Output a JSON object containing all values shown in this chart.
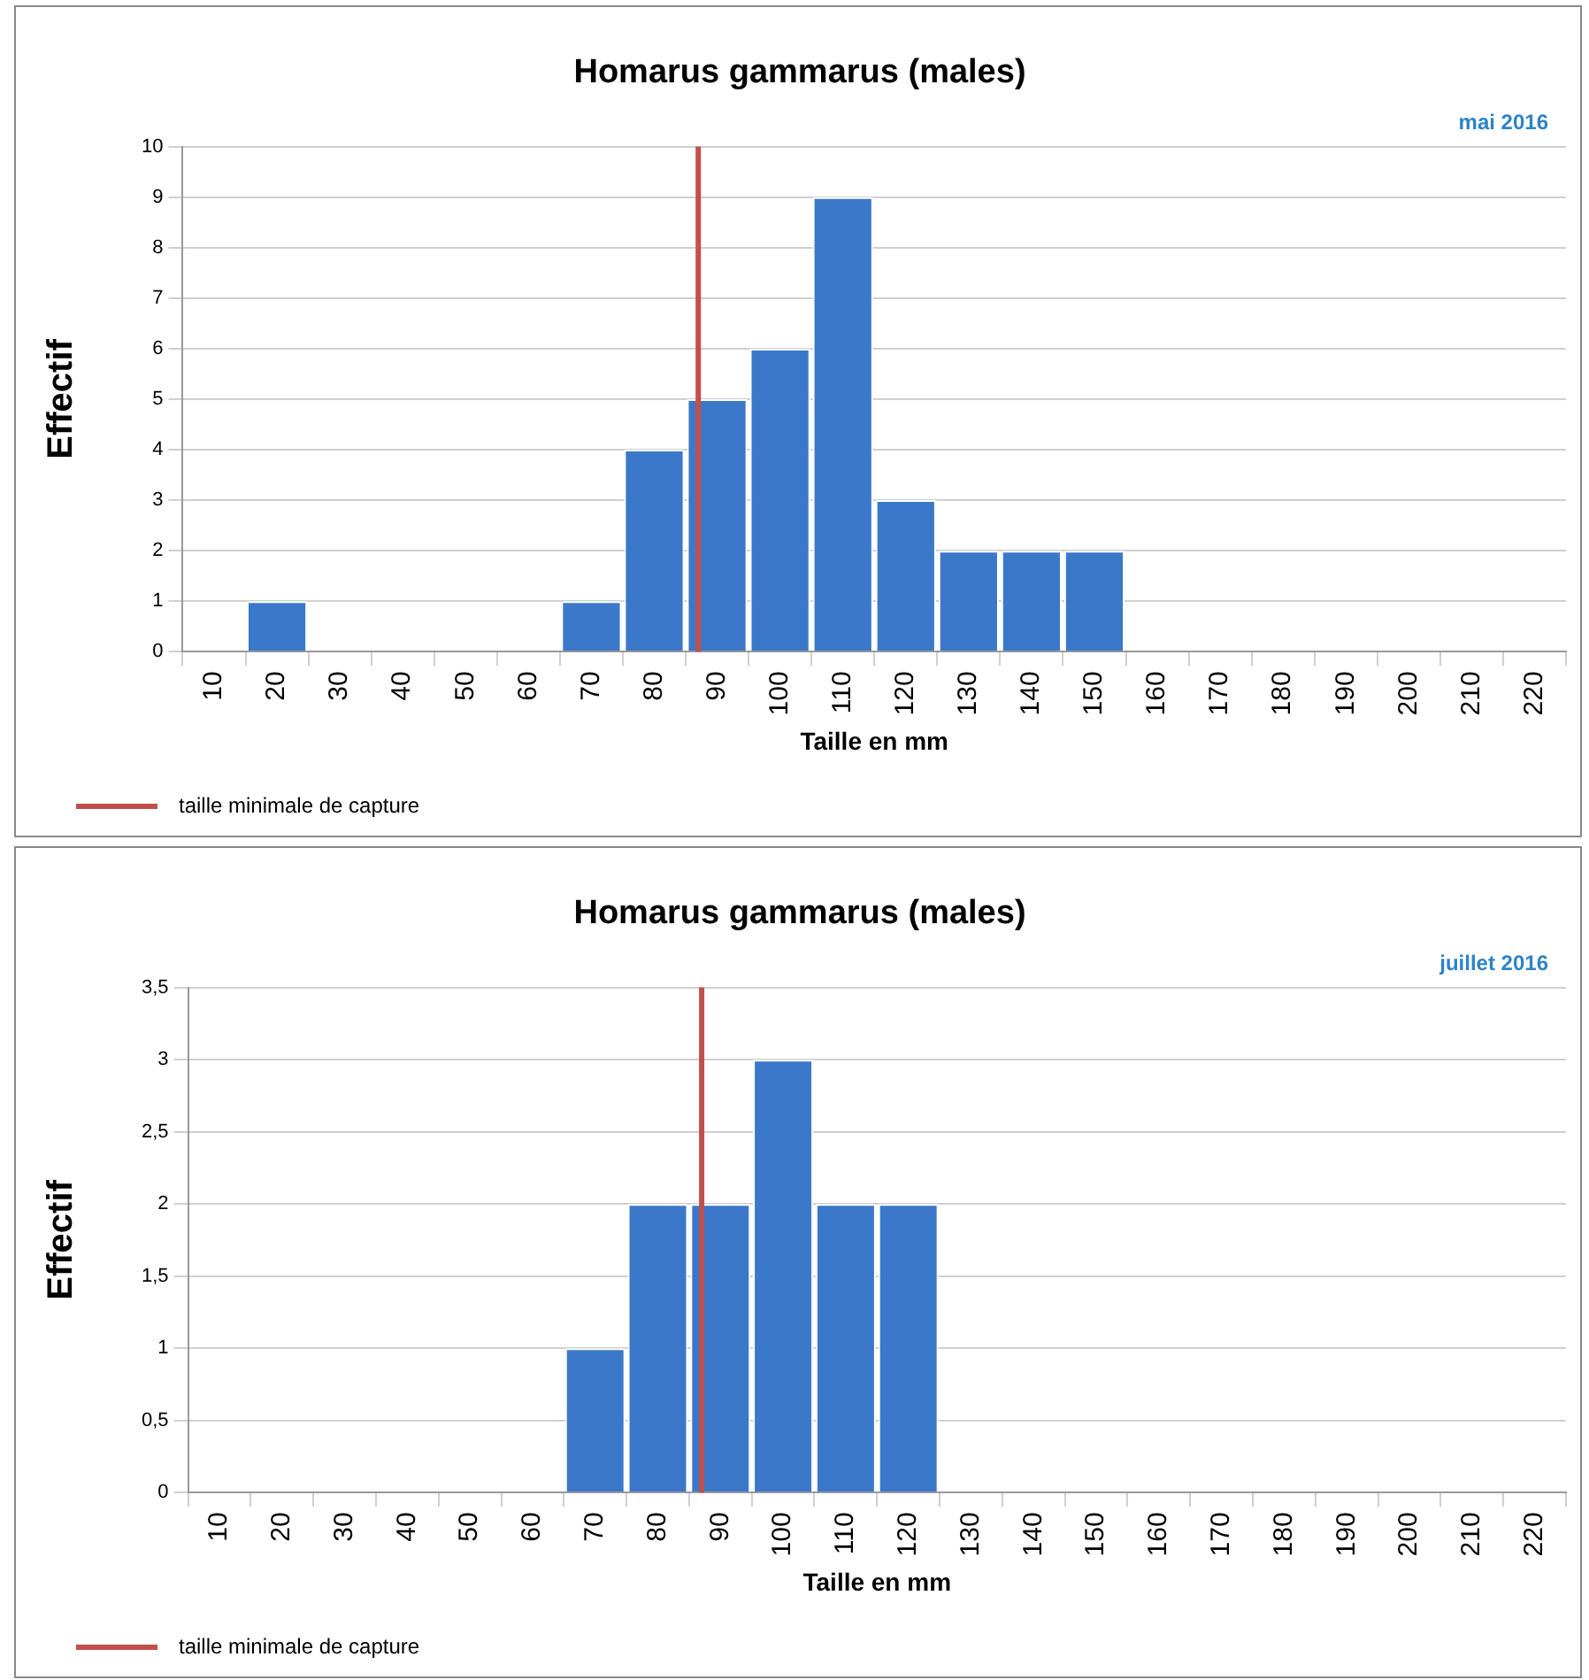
{
  "chart_data": [
    {
      "type": "histogram",
      "title": "Homarus gammarus (males)",
      "xlabel": "Taille en mm",
      "ylabel": "Effectif",
      "annotations": [
        "mai 2016"
      ],
      "bins": [
        5,
        15,
        25,
        35,
        45,
        55,
        65,
        75,
        85,
        95,
        105,
        115,
        125,
        135,
        145,
        155,
        165,
        175,
        185,
        195,
        205,
        215,
        225
      ],
      "values": [
        0,
        1,
        0,
        0,
        0,
        0,
        1,
        4,
        5,
        6,
        9,
        3,
        2,
        2,
        2,
        0,
        0,
        0,
        0,
        0,
        0,
        0
      ],
      "color": "#3b78c9",
      "xlim": [
        5,
        225
      ],
      "xticks": [
        10,
        20,
        30,
        40,
        50,
        60,
        70,
        80,
        90,
        100,
        110,
        120,
        130,
        140,
        150,
        160,
        170,
        180,
        190,
        200,
        210,
        220
      ],
      "ylim": [
        0,
        10
      ],
      "yticks": [
        0,
        1,
        2,
        3,
        4,
        5,
        6,
        7,
        8,
        9,
        10
      ],
      "grid": "y",
      "legend": "bottom left",
      "ref_lines": [
        {
          "axis": "x",
          "value": 87,
          "label": "taille minimale  de capture",
          "color": "#c0504d"
        }
      ]
    },
    {
      "type": "histogram",
      "title": "Homarus gammarus (males)",
      "xlabel": "Taille en mm",
      "ylabel": "Effectif",
      "annotations": [
        "juillet 2016"
      ],
      "bins": [
        5,
        15,
        25,
        35,
        45,
        55,
        65,
        75,
        85,
        95,
        105,
        115,
        125,
        135,
        145,
        155,
        165,
        175,
        185,
        195,
        205,
        215,
        225
      ],
      "values": [
        0,
        0,
        0,
        0,
        0,
        0,
        1,
        2,
        2,
        3,
        2,
        2,
        0,
        0,
        0,
        0,
        0,
        0,
        0,
        0,
        0,
        0
      ],
      "color": "#3b78c9",
      "xlim": [
        5,
        225
      ],
      "xticks": [
        10,
        20,
        30,
        40,
        50,
        60,
        70,
        80,
        90,
        100,
        110,
        120,
        130,
        140,
        150,
        160,
        170,
        180,
        190,
        200,
        210,
        220
      ],
      "ylim": [
        0,
        3.5
      ],
      "yticks": [
        0,
        {
          "value": 0.5,
          "label": "0,5"
        },
        1,
        {
          "value": 1.5,
          "label": "1,5"
        },
        2,
        {
          "value": 2.5,
          "label": "2,5"
        },
        3,
        {
          "value": 3.5,
          "label": "3,5"
        }
      ],
      "grid": "y",
      "legend": "bottom left",
      "ref_lines": [
        {
          "axis": "x",
          "value": 87,
          "label": "taille minimale  de capture",
          "color": "#c0504d"
        }
      ]
    }
  ]
}
